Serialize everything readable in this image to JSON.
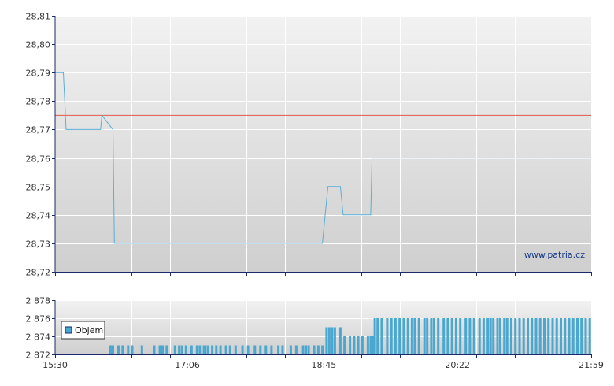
{
  "watermark": "www.patria.cz",
  "colors": {
    "price_line": "#5aaed6",
    "reference_line": "#e05a4a",
    "volume_bar": "#4aa8d0",
    "axis": "#1a2a6a",
    "grid": "#ffffff",
    "plot_bg_top": "#f2f2f2",
    "plot_bg_bottom": "#cfcfcf"
  },
  "chart_data": [
    {
      "type": "line",
      "name": "price",
      "title": "",
      "xlabel": "",
      "ylabel": "",
      "x_range": [
        "15:30",
        "21:59"
      ],
      "ylim": [
        28.72,
        28.81
      ],
      "y_ticks": [
        "28,72",
        "28,73",
        "28,74",
        "28,75",
        "28,76",
        "28,77",
        "28,78",
        "28,79",
        "28,80",
        "28,81"
      ],
      "x_ticks": [
        "15:30",
        "17:06",
        "18:45",
        "20:22",
        "21:59"
      ],
      "grid": true,
      "reference_value": 28.775,
      "series": [
        {
          "points": [
            [
              "15:30",
              28.79
            ],
            [
              "15:36",
              28.79
            ],
            [
              "15:38",
              28.77
            ],
            [
              "16:03",
              28.77
            ],
            [
              "16:04",
              28.775
            ],
            [
              "16:12",
              28.77
            ],
            [
              "16:13",
              28.73
            ],
            [
              "18:44",
              28.73
            ],
            [
              "18:48",
              28.75
            ],
            [
              "18:57",
              28.75
            ],
            [
              "18:59",
              28.74
            ],
            [
              "19:19",
              28.74
            ],
            [
              "19:20",
              28.76
            ],
            [
              "21:59",
              28.76
            ]
          ]
        }
      ]
    },
    {
      "type": "bar",
      "name": "volume",
      "ylim": [
        2872,
        2878
      ],
      "y_ticks": [
        "2 872",
        "2 874",
        "2 876",
        "2 878"
      ],
      "legend": [
        "Objem"
      ],
      "legend_position": "left",
      "baseline": 2872,
      "series": [
        {
          "name": "Objem",
          "bars": [
            [
              "16:10",
              2873
            ],
            [
              "16:11",
              2873
            ],
            [
              "16:12",
              2873
            ],
            [
              "16:16",
              2873
            ],
            [
              "16:19",
              2873
            ],
            [
              "16:23",
              2873
            ],
            [
              "16:26",
              2873
            ],
            [
              "16:33",
              2873
            ],
            [
              "16:42",
              2873
            ],
            [
              "16:46",
              2873
            ],
            [
              "16:47",
              2873
            ],
            [
              "16:48",
              2873
            ],
            [
              "16:51",
              2873
            ],
            [
              "16:57",
              2873
            ],
            [
              "17:00",
              2873
            ],
            [
              "17:02",
              2873
            ],
            [
              "17:05",
              2873
            ],
            [
              "17:09",
              2873
            ],
            [
              "17:13",
              2873
            ],
            [
              "17:15",
              2873
            ],
            [
              "17:18",
              2873
            ],
            [
              "17:19",
              2873
            ],
            [
              "17:21",
              2873
            ],
            [
              "17:24",
              2873
            ],
            [
              "17:27",
              2873
            ],
            [
              "17:30",
              2873
            ],
            [
              "17:34",
              2873
            ],
            [
              "17:37",
              2873
            ],
            [
              "17:41",
              2873
            ],
            [
              "17:46",
              2873
            ],
            [
              "17:50",
              2873
            ],
            [
              "17:55",
              2873
            ],
            [
              "17:59",
              2873
            ],
            [
              "18:03",
              2873
            ],
            [
              "18:07",
              2873
            ],
            [
              "18:12",
              2873
            ],
            [
              "18:15",
              2873
            ],
            [
              "18:21",
              2873
            ],
            [
              "18:25",
              2873
            ],
            [
              "18:30",
              2873
            ],
            [
              "18:32",
              2873
            ],
            [
              "18:34",
              2873
            ],
            [
              "18:38",
              2873
            ],
            [
              "18:41",
              2873
            ],
            [
              "18:44",
              2873
            ],
            [
              "18:47",
              2875
            ],
            [
              "18:49",
              2875
            ],
            [
              "18:51",
              2875
            ],
            [
              "18:53",
              2875
            ],
            [
              "18:57",
              2875
            ],
            [
              "19:00",
              2874
            ],
            [
              "19:04",
              2874
            ],
            [
              "19:07",
              2874
            ],
            [
              "19:10",
              2874
            ],
            [
              "19:13",
              2874
            ],
            [
              "19:17",
              2874
            ],
            [
              "19:19",
              2874
            ],
            [
              "19:21",
              2874
            ],
            [
              "19:22",
              2876
            ],
            [
              "19:24",
              2876
            ],
            [
              "19:27",
              2876
            ],
            [
              "19:31",
              2876
            ],
            [
              "19:34",
              2876
            ],
            [
              "19:37",
              2876
            ],
            [
              "19:40",
              2876
            ],
            [
              "19:43",
              2876
            ],
            [
              "19:46",
              2876
            ],
            [
              "19:49",
              2876
            ],
            [
              "19:51",
              2876
            ],
            [
              "19:54",
              2876
            ],
            [
              "19:58",
              2876
            ],
            [
              "20:00",
              2876
            ],
            [
              "20:03",
              2876
            ],
            [
              "20:05",
              2876
            ],
            [
              "20:08",
              2876
            ],
            [
              "20:12",
              2876
            ],
            [
              "20:15",
              2876
            ],
            [
              "20:18",
              2876
            ],
            [
              "20:21",
              2876
            ],
            [
              "20:24",
              2876
            ],
            [
              "20:28",
              2876
            ],
            [
              "20:31",
              2876
            ],
            [
              "20:34",
              2876
            ],
            [
              "20:38",
              2876
            ],
            [
              "20:41",
              2876
            ],
            [
              "20:44",
              2876
            ],
            [
              "20:46",
              2876
            ],
            [
              "20:48",
              2876
            ],
            [
              "20:51",
              2876
            ],
            [
              "20:53",
              2876
            ],
            [
              "20:56",
              2876
            ],
            [
              "20:58",
              2876
            ],
            [
              "21:01",
              2876
            ],
            [
              "21:04",
              2876
            ],
            [
              "21:07",
              2876
            ],
            [
              "21:10",
              2876
            ],
            [
              "21:13",
              2876
            ],
            [
              "21:16",
              2876
            ],
            [
              "21:19",
              2876
            ],
            [
              "21:22",
              2876
            ],
            [
              "21:25",
              2876
            ],
            [
              "21:28",
              2876
            ],
            [
              "21:31",
              2876
            ],
            [
              "21:34",
              2876
            ],
            [
              "21:37",
              2876
            ],
            [
              "21:40",
              2876
            ],
            [
              "21:43",
              2876
            ],
            [
              "21:46",
              2876
            ],
            [
              "21:49",
              2876
            ],
            [
              "21:52",
              2876
            ],
            [
              "21:55",
              2876
            ],
            [
              "21:58",
              2876
            ]
          ]
        }
      ]
    }
  ]
}
